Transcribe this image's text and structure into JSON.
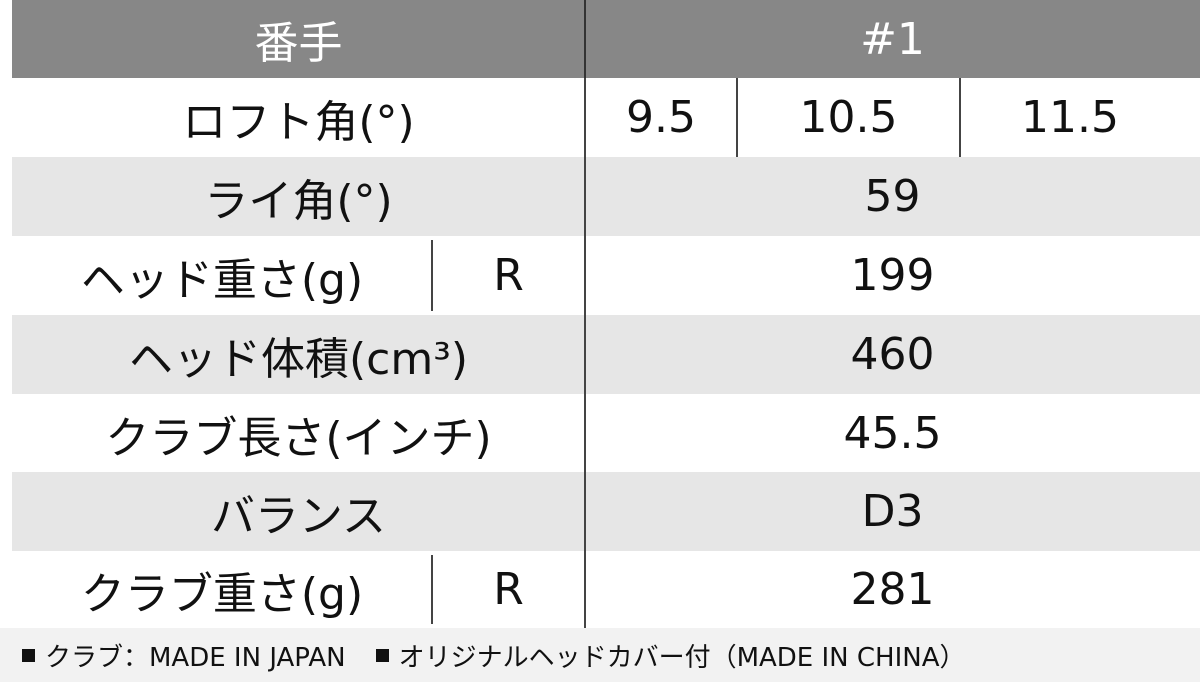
{
  "header": {
    "label": "番手",
    "value": "#1"
  },
  "rows": [
    {
      "label": "ロフト角(°)",
      "values": [
        "9.5",
        "10.5",
        "11.5"
      ]
    },
    {
      "label": "ライ角(°)",
      "value": "59"
    },
    {
      "label": "ヘッド重さ(g)",
      "sub": "R",
      "value": "199"
    },
    {
      "label": "ヘッド体積(cm³)",
      "value": "460"
    },
    {
      "label": "クラブ長さ(インチ)",
      "value": "45.5"
    },
    {
      "label": "バランス",
      "value": "D3"
    },
    {
      "label": "クラブ重さ(g)",
      "sub": "R",
      "value": "281"
    }
  ],
  "footer": [
    "クラブ：MADE IN JAPAN",
    "オリジナルヘッドカバー付（MADE IN CHINA）"
  ]
}
